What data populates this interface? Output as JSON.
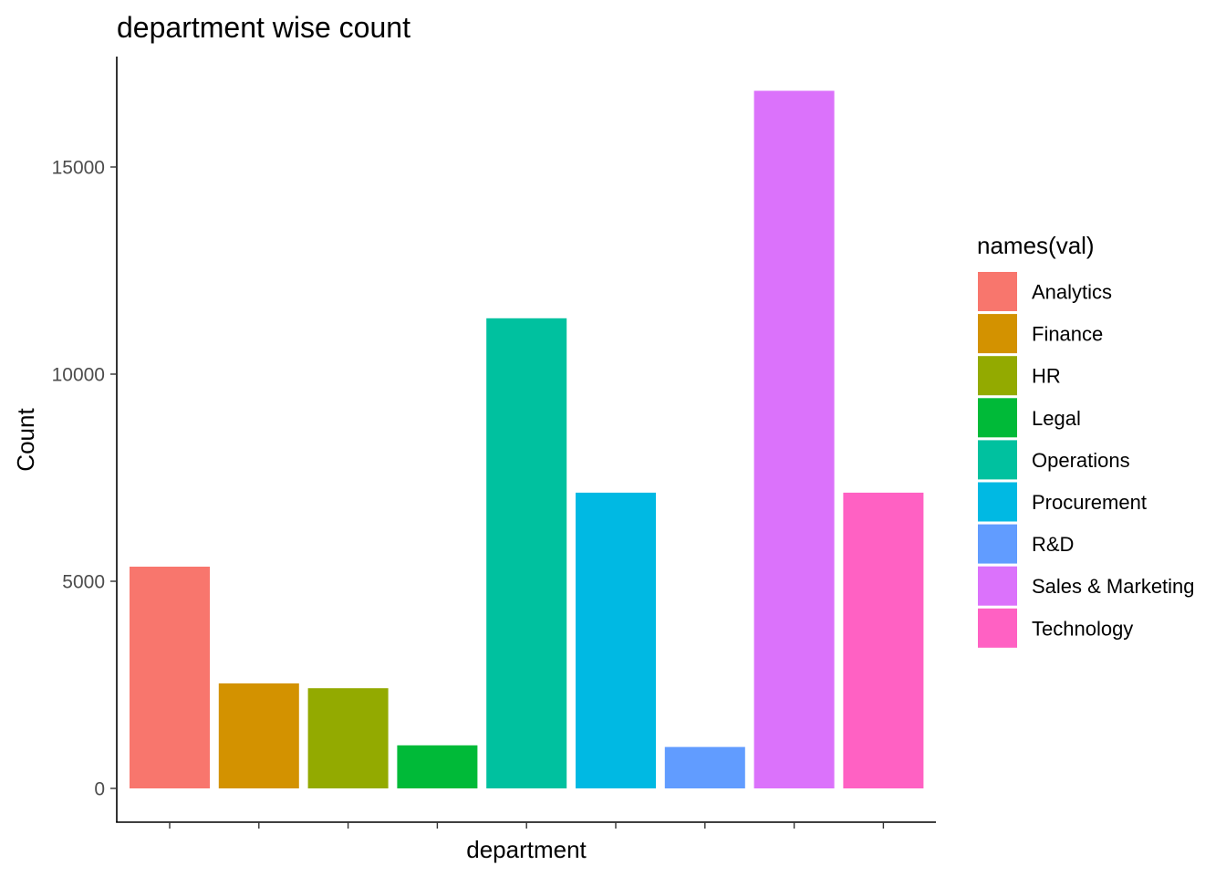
{
  "chart_data": {
    "type": "bar",
    "title": "department wise count",
    "xlabel": "department",
    "ylabel": "Count",
    "ylim": [
      0,
      17000
    ],
    "yticks": [
      0,
      5000,
      10000,
      15000
    ],
    "grid": false,
    "legend": {
      "title": "names(val)",
      "position": "right"
    },
    "categories": [
      "Analytics",
      "Finance",
      "HR",
      "Legal",
      "Operations",
      "Procurement",
      "R&D",
      "Sales & Marketing",
      "Technology"
    ],
    "values": [
      5352,
      2536,
      2418,
      1039,
      11348,
      7138,
      999,
      16840,
      7138
    ],
    "colors": [
      "#F8766D",
      "#D39200",
      "#93AA00",
      "#00BA38",
      "#00C19F",
      "#00B9E3",
      "#619CFF",
      "#DB72FB",
      "#FF61C3"
    ]
  }
}
